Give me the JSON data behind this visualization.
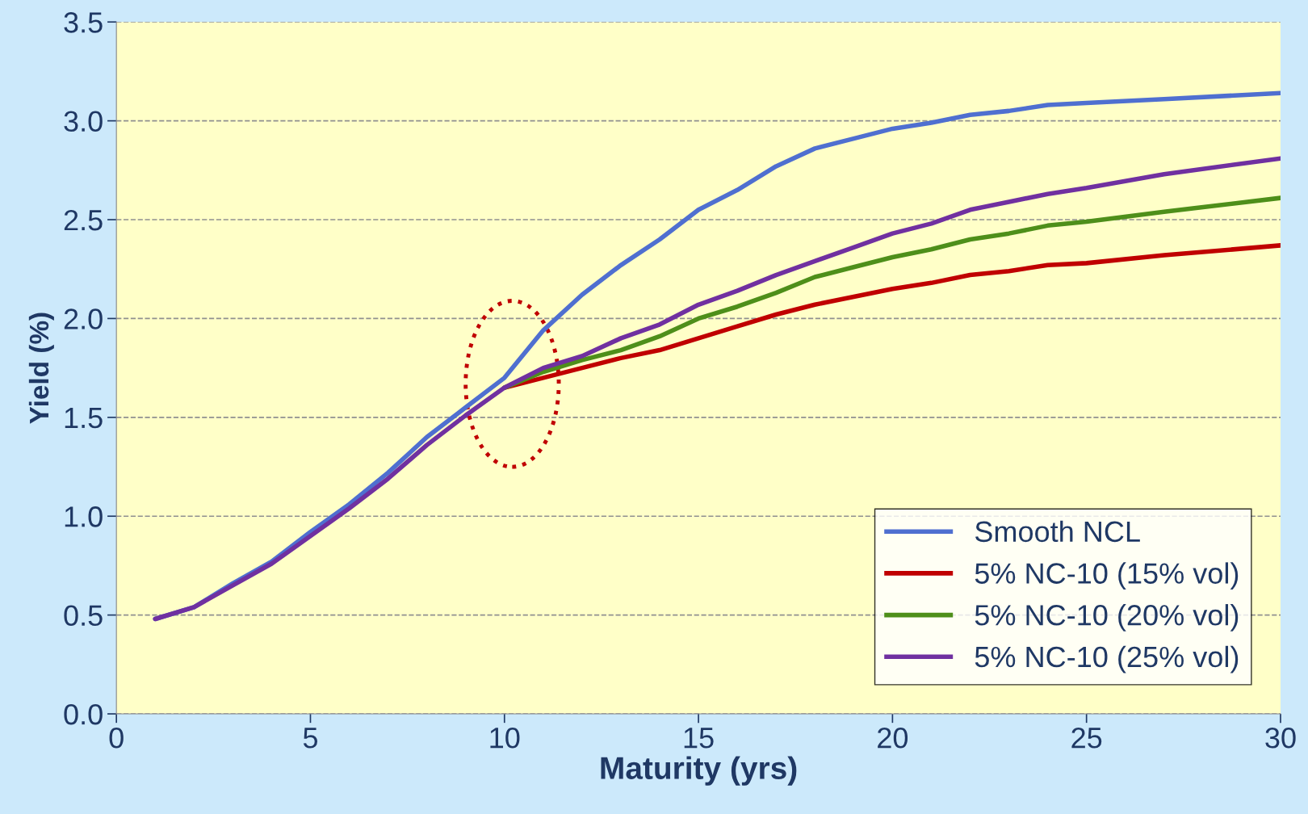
{
  "chart_data": {
    "type": "line",
    "xlabel": "Maturity (yrs)",
    "ylabel": "Yield (%)",
    "x": [
      1,
      2,
      3,
      4,
      5,
      6,
      7,
      8,
      9,
      10,
      11,
      12,
      13,
      14,
      15,
      16,
      17,
      18,
      19,
      20,
      21,
      22,
      23,
      24,
      25,
      27,
      30
    ],
    "xlim": [
      0,
      30
    ],
    "xticks": [
      0,
      5,
      10,
      15,
      20,
      25,
      30
    ],
    "ylim": [
      0,
      3.5
    ],
    "yticks": [
      {
        "value": 0,
        "label": "0.0"
      },
      {
        "value": 0.5,
        "label": "0.5"
      },
      {
        "value": 1,
        "label": "1.0"
      },
      {
        "value": 1.5,
        "label": "1.5"
      },
      {
        "value": 2,
        "label": "2.0"
      },
      {
        "value": 2.5,
        "label": "2.5"
      },
      {
        "value": 3,
        "label": "3.0"
      },
      {
        "value": 3.5,
        "label": "3.5"
      }
    ],
    "grid": "y",
    "legend": "bottom right",
    "marker": "none",
    "line_style": "solid",
    "series": [
      {
        "name": "Smooth NCL",
        "color": "#4f6fd0",
        "values": [
          0.48,
          0.54,
          0.66,
          0.77,
          0.92,
          1.06,
          1.22,
          1.4,
          1.55,
          1.7,
          1.94,
          2.12,
          2.27,
          2.4,
          2.55,
          2.65,
          2.77,
          2.86,
          2.91,
          2.96,
          2.99,
          3.03,
          3.05,
          3.08,
          3.09,
          3.11,
          3.14
        ]
      },
      {
        "name": "5% NC-10 (15% vol)",
        "color": "#c00000",
        "values": [
          null,
          null,
          null,
          null,
          null,
          null,
          null,
          null,
          null,
          1.65,
          1.7,
          1.75,
          1.8,
          1.84,
          1.9,
          1.96,
          2.02,
          2.07,
          2.11,
          2.15,
          2.18,
          2.22,
          2.24,
          2.27,
          2.28,
          2.32,
          2.37
        ]
      },
      {
        "name": "5% NC-10 (20% vol)",
        "color": "#4e8f1a",
        "values": [
          null,
          null,
          null,
          null,
          null,
          null,
          null,
          null,
          null,
          1.65,
          1.73,
          1.79,
          1.84,
          1.91,
          2.0,
          2.06,
          2.13,
          2.21,
          2.26,
          2.31,
          2.35,
          2.4,
          2.43,
          2.47,
          2.49,
          2.54,
          2.61
        ]
      },
      {
        "name": "5% NC-10 (25% vol)",
        "color": "#7030a0",
        "values": [
          0.48,
          0.54,
          0.65,
          0.76,
          0.9,
          1.04,
          1.19,
          1.36,
          1.51,
          1.65,
          1.75,
          1.81,
          1.9,
          1.97,
          2.07,
          2.14,
          2.22,
          2.29,
          2.36,
          2.43,
          2.48,
          2.55,
          2.59,
          2.63,
          2.66,
          2.73,
          2.81
        ]
      }
    ]
  }
}
